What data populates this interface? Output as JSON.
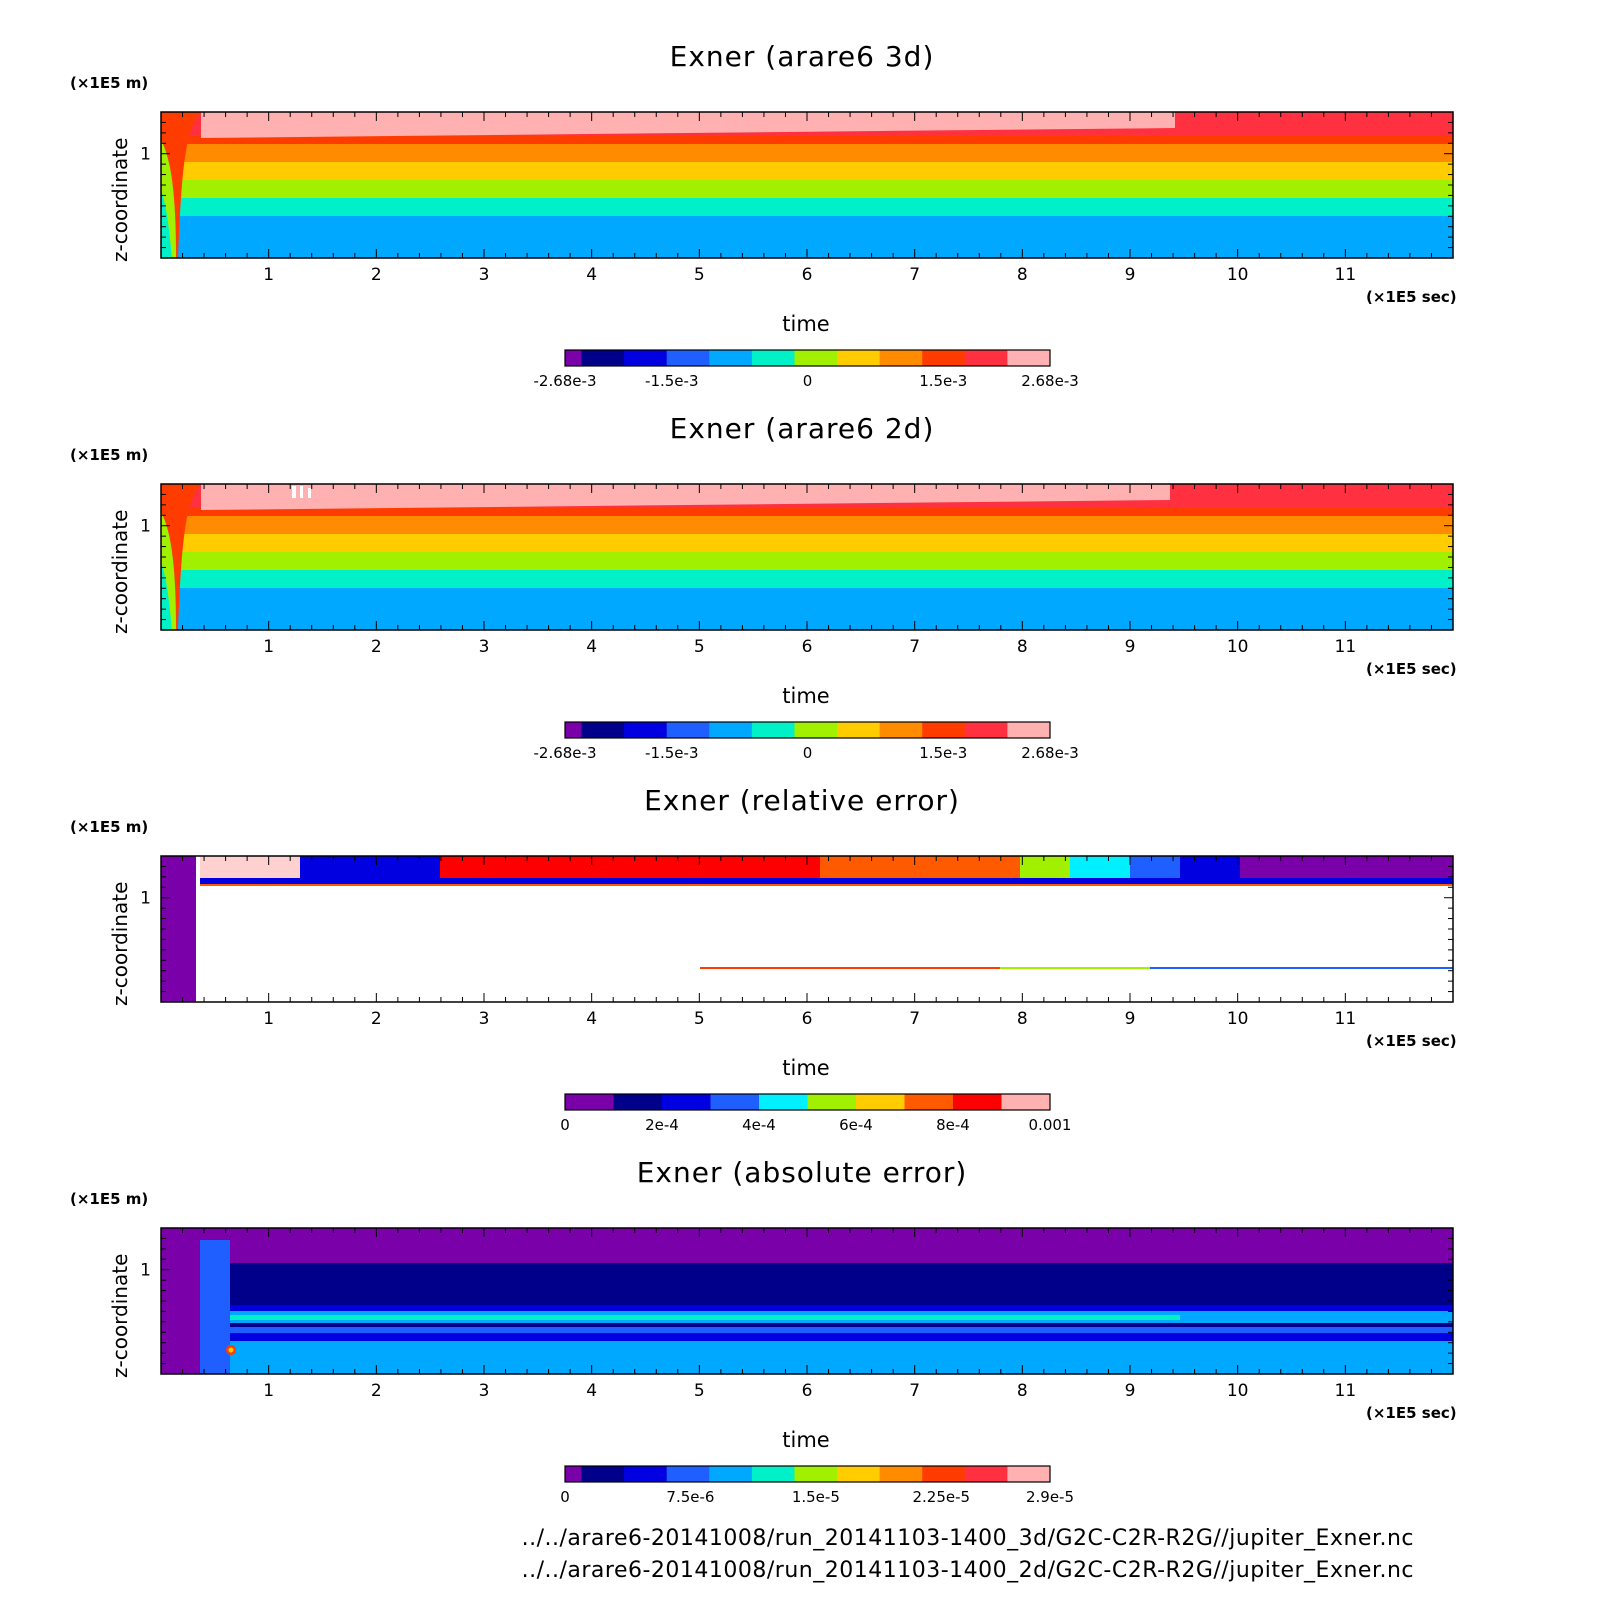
{
  "chart_data": [
    {
      "type": "heatmap",
      "title": "Exner (arare6 3d)",
      "xlabel": "time",
      "ylabel": "z-coordinate",
      "x_unit": "(×1E5 sec)",
      "y_unit": "(×1E5 m)",
      "x_ticks": [
        "1",
        "2",
        "3",
        "4",
        "5",
        "6",
        "7",
        "8",
        "9",
        "10",
        "11"
      ],
      "y_ticks": [
        "1"
      ],
      "colorbar": {
        "colors": [
          "#7a00aa",
          "#00008b",
          "#0000e0",
          "#1f5fff",
          "#00a8ff",
          "#00f0c8",
          "#a0f000",
          "#ffcc00",
          "#ff8c00",
          "#ff3c00",
          "#ff3040",
          "#ffb0b0"
        ],
        "labels": [
          "-2.68e-3",
          "-1.5e-3",
          "0",
          "1.5e-3",
          "2.68e-3"
        ],
        "label_values": [
          -0.00268,
          -0.0015,
          0,
          0.0015,
          0.00268
        ],
        "range": [
          -0.00268,
          0.00268
        ]
      }
    },
    {
      "type": "heatmap",
      "title": "Exner (arare6 2d)",
      "xlabel": "time",
      "ylabel": "z-coordinate",
      "x_unit": "(×1E5 sec)",
      "y_unit": "(×1E5 m)",
      "x_ticks": [
        "1",
        "2",
        "3",
        "4",
        "5",
        "6",
        "7",
        "8",
        "9",
        "10",
        "11"
      ],
      "y_ticks": [
        "1"
      ],
      "colorbar": {
        "colors": [
          "#7a00aa",
          "#00008b",
          "#0000e0",
          "#1f5fff",
          "#00a8ff",
          "#00f0c8",
          "#a0f000",
          "#ffcc00",
          "#ff8c00",
          "#ff3c00",
          "#ff3040",
          "#ffb0b0"
        ],
        "labels": [
          "-2.68e-3",
          "-1.5e-3",
          "0",
          "1.5e-3",
          "2.68e-3"
        ],
        "label_values": [
          -0.00268,
          -0.0015,
          0,
          0.0015,
          0.00268
        ],
        "range": [
          -0.00268,
          0.00268
        ]
      }
    },
    {
      "type": "heatmap",
      "title": "Exner (relative error)",
      "xlabel": "time",
      "ylabel": "z-coordinate",
      "x_unit": "(×1E5 sec)",
      "y_unit": "(×1E5 m)",
      "x_ticks": [
        "1",
        "2",
        "3",
        "4",
        "5",
        "6",
        "7",
        "8",
        "9",
        "10",
        "11"
      ],
      "y_ticks": [
        "1"
      ],
      "colorbar": {
        "colors": [
          "#7a00aa",
          "#00008b",
          "#0000e0",
          "#1f5fff",
          "#00f0ff",
          "#a0f000",
          "#ffcc00",
          "#ff5a00",
          "#ff0000",
          "#ffb0b0"
        ],
        "labels": [
          "0",
          "2e-4",
          "4e-4",
          "6e-4",
          "8e-4",
          "0.001"
        ],
        "label_values": [
          0,
          0.0002,
          0.0004,
          0.0006,
          0.0008,
          0.001
        ],
        "range": [
          0,
          0.001
        ]
      }
    },
    {
      "type": "heatmap",
      "title": "Exner (absolute error)",
      "xlabel": "time",
      "ylabel": "z-coordinate",
      "x_unit": "(×1E5 sec)",
      "y_unit": "(×1E5 m)",
      "x_ticks": [
        "1",
        "2",
        "3",
        "4",
        "5",
        "6",
        "7",
        "8",
        "9",
        "10",
        "11"
      ],
      "y_ticks": [
        "1"
      ],
      "colorbar": {
        "colors": [
          "#7a00aa",
          "#00008b",
          "#0000e0",
          "#1f5fff",
          "#00a8ff",
          "#00f0c8",
          "#a0f000",
          "#ffcc00",
          "#ff8c00",
          "#ff3c00",
          "#ff3040",
          "#ffb0b0"
        ],
        "labels": [
          "0",
          "7.5e-6",
          "1.5e-5",
          "2.25e-5",
          "2.9e-5"
        ],
        "label_values": [
          0,
          7.5e-06,
          1.5e-05,
          2.25e-05,
          2.9e-05
        ],
        "range": [
          0,
          2.9e-05
        ]
      }
    }
  ],
  "footer": {
    "line1": "../../arare6-20141008/run_20141103-1400_3d/G2C-C2R-R2G//jupiter_Exner.nc",
    "line2": "../../arare6-20141008/run_20141103-1400_2d/G2C-C2R-R2G//jupiter_Exner.nc"
  }
}
